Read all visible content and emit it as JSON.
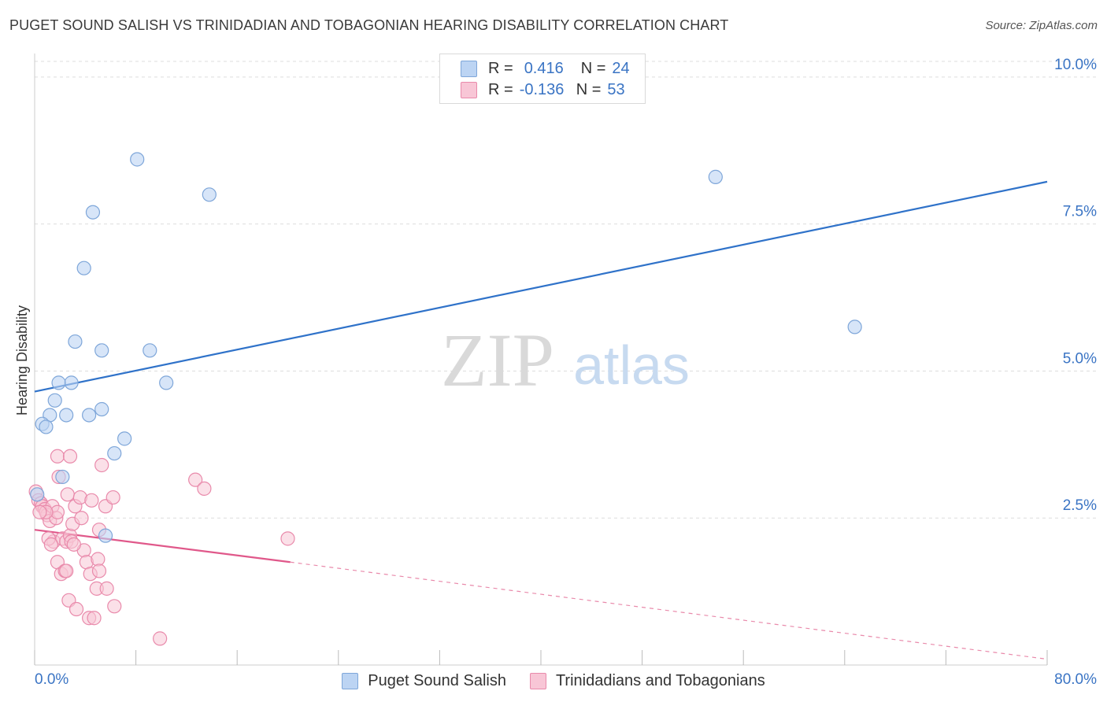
{
  "title": "PUGET SOUND SALISH VS TRINIDADIAN AND TOBAGONIAN HEARING DISABILITY CORRELATION CHART",
  "source": "Source: ZipAtlas.com",
  "watermark": {
    "zip": "ZIP",
    "atlas": "atlas"
  },
  "legend": {
    "rows": [
      {
        "r_label": "R =",
        "r_value": "0.416",
        "n_label": "N =",
        "n_value": "24"
      },
      {
        "r_label": "R =",
        "r_value": "-0.136",
        "n_label": "N =",
        "n_value": "53"
      }
    ]
  },
  "bottom_legend": {
    "blue_label": "Puget Sound Salish",
    "pink_label": "Trinidadians and Tobagonians"
  },
  "colors": {
    "blue_fill": "#bcd4f3",
    "blue_stroke": "#7ea6d9",
    "blue_line": "#2f72c9",
    "pink_fill": "#f8c6d6",
    "pink_stroke": "#e98aab",
    "pink_line": "#e0588a",
    "grid": "#dddddd",
    "tick_label": "#3a74c4"
  },
  "chart_data": {
    "type": "scatter",
    "title": "PUGET SOUND SALISH VS TRINIDADIAN AND TOBAGONIAN HEARING DISABILITY CORRELATION CHART",
    "xlabel": "",
    "ylabel": "Hearing Disability",
    "xlim": [
      0,
      80
    ],
    "ylim": [
      0,
      10.4
    ],
    "x_tick_labels": [
      "0.0%",
      "80.0%"
    ],
    "y_ticks": [
      2.5,
      5.0,
      7.5,
      10.0
    ],
    "y_tick_labels": [
      "2.5%",
      "5.0%",
      "7.5%",
      "10.0%"
    ],
    "series": [
      {
        "name": "Puget Sound Salish",
        "color": "blue",
        "points": [
          [
            8.1,
            8.6
          ],
          [
            13.8,
            8.0
          ],
          [
            4.6,
            7.7
          ],
          [
            3.9,
            6.75
          ],
          [
            3.2,
            5.5
          ],
          [
            5.3,
            5.35
          ],
          [
            9.1,
            5.35
          ],
          [
            2.9,
            4.8
          ],
          [
            1.9,
            4.8
          ],
          [
            10.4,
            4.8
          ],
          [
            1.6,
            4.5
          ],
          [
            5.3,
            4.35
          ],
          [
            1.2,
            4.25
          ],
          [
            2.5,
            4.25
          ],
          [
            4.3,
            4.25
          ],
          [
            0.6,
            4.1
          ],
          [
            0.9,
            4.05
          ],
          [
            7.1,
            3.85
          ],
          [
            6.3,
            3.6
          ],
          [
            2.2,
            3.2
          ],
          [
            5.6,
            2.2
          ],
          [
            53.8,
            8.3
          ],
          [
            64.8,
            5.75
          ],
          [
            0.2,
            2.9
          ]
        ],
        "trend": {
          "x0": 0,
          "y0": 4.65,
          "x1": 80,
          "y1": 8.22
        }
      },
      {
        "name": "Trinidadians and Tobagonians",
        "color": "pink",
        "points": [
          [
            0.1,
            2.95
          ],
          [
            0.3,
            2.8
          ],
          [
            0.5,
            2.75
          ],
          [
            0.6,
            2.7
          ],
          [
            0.8,
            2.65
          ],
          [
            1.0,
            2.55
          ],
          [
            1.2,
            2.45
          ],
          [
            1.4,
            2.7
          ],
          [
            1.5,
            2.1
          ],
          [
            1.7,
            2.5
          ],
          [
            1.8,
            2.6
          ],
          [
            1.8,
            1.75
          ],
          [
            1.9,
            3.2
          ],
          [
            1.8,
            3.55
          ],
          [
            2.1,
            1.55
          ],
          [
            2.2,
            2.15
          ],
          [
            2.4,
            1.6
          ],
          [
            2.5,
            1.6
          ],
          [
            2.5,
            2.1
          ],
          [
            2.6,
            2.9
          ],
          [
            2.7,
            1.1
          ],
          [
            2.8,
            2.2
          ],
          [
            2.8,
            3.55
          ],
          [
            2.9,
            2.1
          ],
          [
            3.0,
            2.4
          ],
          [
            3.2,
            2.7
          ],
          [
            3.3,
            0.95
          ],
          [
            3.6,
            2.85
          ],
          [
            3.7,
            2.5
          ],
          [
            3.9,
            1.95
          ],
          [
            4.1,
            1.75
          ],
          [
            4.3,
            0.8
          ],
          [
            4.4,
            1.55
          ],
          [
            4.5,
            2.8
          ],
          [
            4.7,
            0.8
          ],
          [
            4.9,
            1.3
          ],
          [
            5.0,
            1.8
          ],
          [
            5.1,
            1.6
          ],
          [
            5.1,
            2.3
          ],
          [
            5.3,
            3.4
          ],
          [
            5.6,
            2.7
          ],
          [
            5.7,
            1.3
          ],
          [
            6.2,
            2.85
          ],
          [
            6.3,
            1.0
          ],
          [
            1.1,
            2.15
          ],
          [
            1.3,
            2.05
          ],
          [
            3.1,
            2.05
          ],
          [
            0.9,
            2.6
          ],
          [
            9.9,
            0.45
          ],
          [
            12.7,
            3.15
          ],
          [
            13.4,
            3.0
          ],
          [
            20.0,
            2.15
          ],
          [
            0.4,
            2.6
          ]
        ],
        "trend_solid": {
          "x0": 0,
          "y0": 2.3,
          "x1": 20.2,
          "y1": 1.75
        },
        "trend_dashed": {
          "x0": 20.2,
          "y0": 1.75,
          "x1": 80,
          "y1": 0.1
        }
      }
    ]
  }
}
